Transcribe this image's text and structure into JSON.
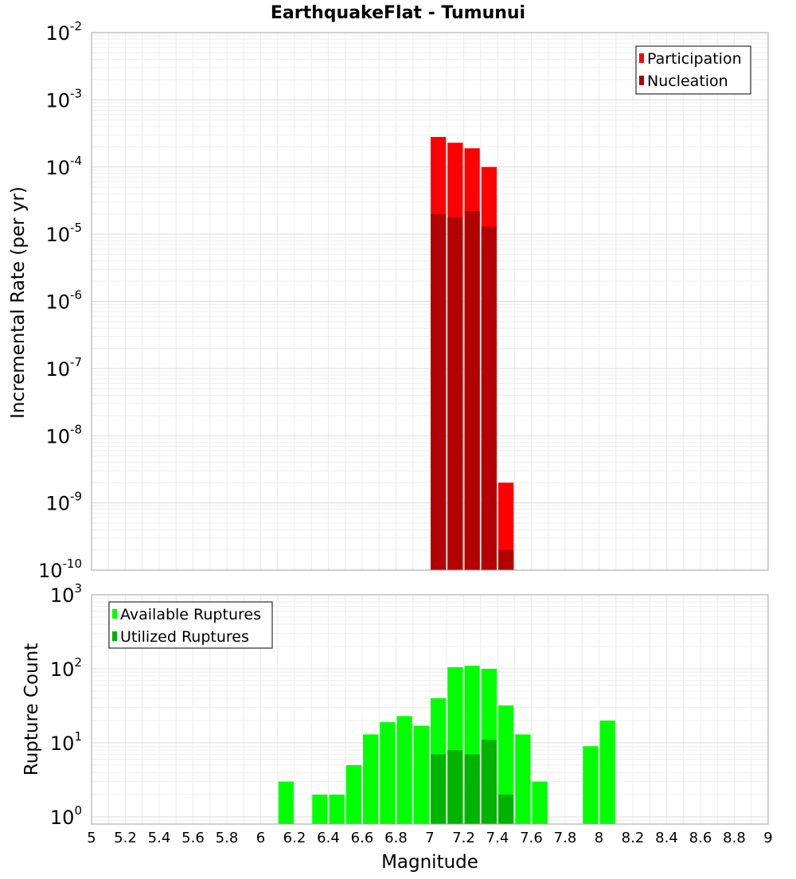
{
  "title": "EarthquakeFlat - Tumunui",
  "chart_data": [
    {
      "type": "bar",
      "panel": "top",
      "xlabel": "Magnitude",
      "ylabel": "Incremental Rate (per yr)",
      "ylog": true,
      "xlim": [
        5,
        9
      ],
      "ylim": [
        1e-10,
        0.01
      ],
      "x": [
        7.05,
        7.15,
        7.25,
        7.35,
        7.45
      ],
      "series": [
        {
          "name": "Participation",
          "color": "#ff0000",
          "values": [
            0.00028,
            0.00023,
            0.00019,
            0.0001,
            2e-09
          ]
        },
        {
          "name": "Nucleation",
          "color": "#b30000",
          "values": [
            2e-05,
            1.8e-05,
            2.2e-05,
            1.3e-05,
            2e-10
          ]
        }
      ],
      "y_ticks": [
        {
          "base": "10",
          "exp": "-10"
        },
        {
          "base": "10",
          "exp": "-9"
        },
        {
          "base": "10",
          "exp": "-8"
        },
        {
          "base": "10",
          "exp": "-7"
        },
        {
          "base": "10",
          "exp": "-6"
        },
        {
          "base": "10",
          "exp": "-5"
        },
        {
          "base": "10",
          "exp": "-4"
        },
        {
          "base": "10",
          "exp": "-3"
        },
        {
          "base": "10",
          "exp": "-2"
        }
      ],
      "grid": true,
      "legend": "top-right"
    },
    {
      "type": "bar",
      "panel": "bottom",
      "xlabel": "Magnitude",
      "ylabel": "Rupture Count",
      "ylog": true,
      "xlim": [
        5,
        9
      ],
      "ylim": [
        0.8,
        1000
      ],
      "x": [
        6.15,
        6.35,
        6.45,
        6.55,
        6.65,
        6.75,
        6.85,
        6.95,
        7.05,
        7.15,
        7.25,
        7.35,
        7.45,
        7.55,
        7.65,
        7.95,
        8.05
      ],
      "series": [
        {
          "name": "Available Ruptures",
          "color": "#00ff00",
          "values": [
            3,
            2,
            2,
            5,
            13,
            19,
            23,
            17,
            40,
            105,
            110,
            100,
            32,
            13,
            3,
            9,
            20
          ]
        },
        {
          "name": "Utilized Ruptures",
          "color": "#00b300",
          "values": [
            0,
            0,
            0,
            0,
            0,
            0,
            0,
            0,
            7,
            8,
            7,
            11,
            2,
            0,
            0,
            0,
            0
          ]
        }
      ],
      "y_ticks": [
        {
          "base": "10",
          "exp": "0"
        },
        {
          "base": "10",
          "exp": "1"
        },
        {
          "base": "10",
          "exp": "2"
        },
        {
          "base": "10",
          "exp": "3"
        }
      ],
      "x_ticks": [
        "5",
        "5.2",
        "5.4",
        "5.6",
        "5.8",
        "6",
        "6.2",
        "6.4",
        "6.6",
        "6.8",
        "7",
        "7.2",
        "7.4",
        "7.6",
        "7.8",
        "8",
        "8.2",
        "8.4",
        "8.6",
        "8.8",
        "9"
      ],
      "grid": true,
      "legend": "top-left"
    }
  ]
}
